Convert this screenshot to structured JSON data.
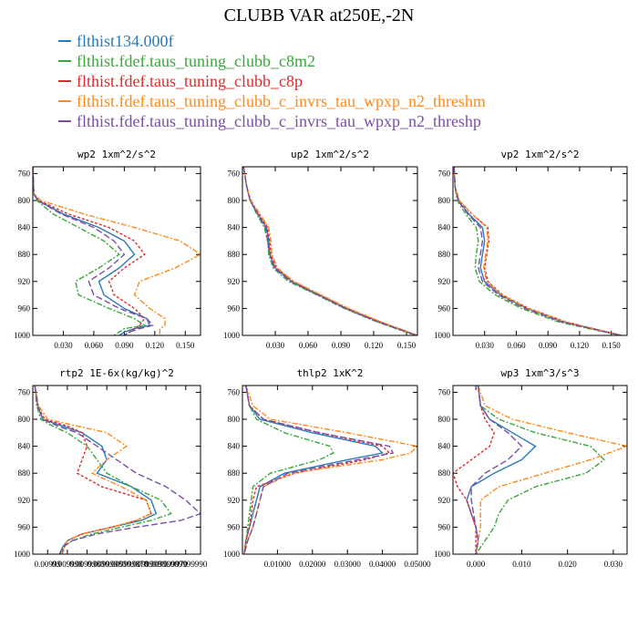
{
  "title": "CLUBB VAR at250E,-2N",
  "legend": [
    {
      "label": "flthist134.000f",
      "color": "#2a7ab9"
    },
    {
      "label": "flthist.fdef.taus_tuning_clubb_c8m2",
      "color": "#3aa73a"
    },
    {
      "label": "flthist.fdef.taus_tuning_clubb_c8p",
      "color": "#e02a2a"
    },
    {
      "label": "flthist.fdef.taus_tuning_clubb_c_invrs_tau_wpxp_n2_threshm",
      "color": "#ff8a1c"
    },
    {
      "label": "flthist.fdef.taus_tuning_clubb_c_invrs_tau_wpxp_n2_threshp",
      "color": "#7b4ea6"
    }
  ],
  "chart_data": [
    {
      "type": "line",
      "title": "wp2  1xm^2/s^2",
      "xlim": [
        0.0,
        0.165
      ],
      "ylim": [
        1000,
        750
      ],
      "xticks": [
        0.03,
        0.06,
        0.09,
        0.12,
        0.15
      ],
      "xticklabels": [
        "0.030",
        "0.060",
        "0.090",
        "0.120",
        "0.150"
      ],
      "yticks": [
        760,
        800,
        840,
        880,
        920,
        960,
        1000
      ],
      "y": [
        750,
        790,
        800,
        820,
        840,
        860,
        880,
        900,
        920,
        940,
        960,
        975,
        985,
        990,
        995,
        1000
      ],
      "series": [
        {
          "values": [
            0.0,
            0.001,
            0.005,
            0.03,
            0.065,
            0.09,
            0.1,
            0.085,
            0.065,
            0.07,
            0.09,
            0.112,
            0.115,
            0.1,
            0.09,
            0.085
          ]
        },
        {
          "values": [
            0.0,
            0.001,
            0.004,
            0.02,
            0.045,
            0.07,
            0.085,
            0.065,
            0.042,
            0.045,
            0.075,
            0.1,
            0.11,
            0.09,
            0.085,
            0.08
          ]
        },
        {
          "values": [
            0.0,
            0.001,
            0.006,
            0.035,
            0.075,
            0.1,
            0.11,
            0.09,
            0.075,
            0.08,
            0.1,
            0.11,
            0.105,
            0.1,
            0.095,
            0.09
          ]
        },
        {
          "values": [
            0.0,
            0.001,
            0.008,
            0.05,
            0.1,
            0.145,
            0.165,
            0.14,
            0.105,
            0.1,
            0.115,
            0.13,
            0.13,
            0.125,
            0.125,
            0.125
          ]
        },
        {
          "values": [
            0.0,
            0.001,
            0.005,
            0.028,
            0.06,
            0.08,
            0.09,
            0.075,
            0.055,
            0.06,
            0.085,
            0.112,
            0.118,
            0.105,
            0.095,
            0.09
          ]
        }
      ]
    },
    {
      "type": "line",
      "title": "up2  1xm^2/s^2",
      "xlim": [
        0.0,
        0.16
      ],
      "ylim": [
        1000,
        750
      ],
      "xticks": [
        0.03,
        0.06,
        0.09,
        0.12,
        0.15
      ],
      "xticklabels": [
        "0.030",
        "0.060",
        "0.090",
        "0.120",
        "0.150"
      ],
      "yticks": [
        760,
        800,
        840,
        880,
        920,
        960,
        1000
      ],
      "y": [
        750,
        780,
        800,
        820,
        840,
        860,
        880,
        900,
        920,
        940,
        960,
        980,
        1000
      ],
      "series": [
        {
          "values": [
            0.001,
            0.004,
            0.007,
            0.014,
            0.022,
            0.024,
            0.025,
            0.03,
            0.045,
            0.07,
            0.095,
            0.125,
            0.16
          ]
        },
        {
          "values": [
            0.001,
            0.004,
            0.007,
            0.013,
            0.02,
            0.023,
            0.024,
            0.028,
            0.042,
            0.068,
            0.093,
            0.123,
            0.158
          ]
        },
        {
          "values": [
            0.001,
            0.004,
            0.007,
            0.015,
            0.023,
            0.025,
            0.026,
            0.031,
            0.046,
            0.071,
            0.096,
            0.126,
            0.16
          ]
        },
        {
          "values": [
            0.001,
            0.004,
            0.008,
            0.016,
            0.024,
            0.026,
            0.027,
            0.032,
            0.047,
            0.072,
            0.097,
            0.127,
            0.16
          ]
        },
        {
          "values": [
            0.001,
            0.004,
            0.007,
            0.014,
            0.021,
            0.023,
            0.025,
            0.029,
            0.044,
            0.069,
            0.094,
            0.124,
            0.159
          ]
        }
      ]
    },
    {
      "type": "line",
      "title": "vp2  1xm^2/s^2",
      "xlim": [
        0.0,
        0.165
      ],
      "ylim": [
        1000,
        750
      ],
      "xticks": [
        0.03,
        0.06,
        0.09,
        0.12,
        0.15
      ],
      "xticklabels": [
        "0.030",
        "0.060",
        "0.090",
        "0.120",
        "0.150"
      ],
      "yticks": [
        760,
        800,
        840,
        880,
        920,
        960,
        1000
      ],
      "y": [
        750,
        780,
        800,
        820,
        840,
        860,
        880,
        900,
        920,
        940,
        960,
        980,
        1000
      ],
      "series": [
        {
          "values": [
            0.001,
            0.002,
            0.005,
            0.015,
            0.028,
            0.03,
            0.028,
            0.026,
            0.03,
            0.045,
            0.07,
            0.105,
            0.16
          ]
        },
        {
          "values": [
            0.001,
            0.002,
            0.004,
            0.012,
            0.022,
            0.024,
            0.022,
            0.021,
            0.025,
            0.04,
            0.065,
            0.1,
            0.158
          ]
        },
        {
          "values": [
            0.001,
            0.002,
            0.006,
            0.018,
            0.033,
            0.034,
            0.032,
            0.03,
            0.033,
            0.047,
            0.072,
            0.107,
            0.16
          ]
        },
        {
          "values": [
            0.001,
            0.002,
            0.006,
            0.018,
            0.032,
            0.033,
            0.031,
            0.029,
            0.032,
            0.046,
            0.071,
            0.106,
            0.16
          ]
        },
        {
          "values": [
            0.001,
            0.002,
            0.005,
            0.014,
            0.026,
            0.028,
            0.026,
            0.024,
            0.028,
            0.043,
            0.068,
            0.103,
            0.159
          ]
        }
      ]
    },
    {
      "type": "line",
      "title": "rtp2  1E-6x(kg/kg)^2",
      "xlim": [
        0.0,
        0.17
      ],
      "ylim": [
        1000,
        750
      ],
      "xticks": [
        0.015,
        0.035,
        0.055,
        0.075,
        0.095,
        0.115,
        0.135,
        0.155
      ],
      "xticklabels": [
        "0.00999",
        "0.009998",
        "0.0099980",
        "0.00999980",
        "0.009999870",
        "0.00999990",
        "0.009999970",
        "0.009999990"
      ],
      "yticks": [
        760,
        800,
        840,
        880,
        920,
        960,
        1000
      ],
      "y": [
        750,
        780,
        800,
        810,
        820,
        840,
        860,
        880,
        900,
        920,
        940,
        950,
        960,
        970,
        980,
        990,
        1000
      ],
      "series": [
        {
          "values": [
            0.002,
            0.005,
            0.01,
            0.03,
            0.05,
            0.07,
            0.075,
            0.065,
            0.1,
            0.12,
            0.125,
            0.11,
            0.08,
            0.05,
            0.035,
            0.03,
            0.03
          ]
        },
        {
          "values": [
            0.002,
            0.004,
            0.008,
            0.02,
            0.035,
            0.055,
            0.065,
            0.075,
            0.1,
            0.13,
            0.14,
            0.12,
            0.09,
            0.06,
            0.04,
            0.03,
            0.028
          ]
        },
        {
          "values": [
            0.002,
            0.005,
            0.012,
            0.035,
            0.05,
            0.055,
            0.05,
            0.045,
            0.07,
            0.115,
            0.12,
            0.105,
            0.08,
            0.05,
            0.035,
            0.032,
            0.03
          ]
        },
        {
          "values": [
            0.002,
            0.006,
            0.015,
            0.045,
            0.075,
            0.095,
            0.075,
            0.06,
            0.09,
            0.115,
            0.12,
            0.105,
            0.08,
            0.05,
            0.035,
            0.032,
            0.03
          ]
        },
        {
          "values": [
            0.002,
            0.005,
            0.01,
            0.025,
            0.045,
            0.065,
            0.085,
            0.105,
            0.135,
            0.155,
            0.17,
            0.15,
            0.105,
            0.065,
            0.04,
            0.03,
            0.027
          ]
        }
      ]
    },
    {
      "type": "line",
      "title": "thlp2  1xK^2",
      "xlim": [
        0.0,
        0.05
      ],
      "ylim": [
        1000,
        750
      ],
      "xticks": [
        0.01,
        0.02,
        0.03,
        0.04,
        0.05
      ],
      "xticklabels": [
        "0.01000",
        "0.02000",
        "0.03000",
        "0.04000",
        "0.05000"
      ],
      "yticks": [
        760,
        800,
        840,
        880,
        920,
        960,
        1000
      ],
      "y": [
        750,
        780,
        800,
        820,
        840,
        850,
        860,
        880,
        900,
        920,
        940,
        960,
        980,
        1000
      ],
      "series": [
        {
          "values": [
            0.001,
            0.002,
            0.005,
            0.02,
            0.038,
            0.04,
            0.03,
            0.012,
            0.005,
            0.004,
            0.003,
            0.002,
            0.001,
            0.0005
          ]
        },
        {
          "values": [
            0.001,
            0.002,
            0.004,
            0.012,
            0.025,
            0.026,
            0.022,
            0.008,
            0.003,
            0.0025,
            0.002,
            0.0015,
            0.001,
            0.0005
          ]
        },
        {
          "values": [
            0.001,
            0.002,
            0.006,
            0.022,
            0.04,
            0.042,
            0.035,
            0.015,
            0.004,
            0.003,
            0.0025,
            0.002,
            0.001,
            0.0005
          ]
        },
        {
          "values": [
            0.001,
            0.003,
            0.008,
            0.03,
            0.05,
            0.048,
            0.04,
            0.014,
            0.006,
            0.005,
            0.004,
            0.003,
            0.0015,
            0.0005
          ]
        },
        {
          "values": [
            0.001,
            0.002,
            0.006,
            0.022,
            0.042,
            0.043,
            0.033,
            0.013,
            0.006,
            0.005,
            0.004,
            0.003,
            0.0015,
            0.0005
          ]
        }
      ]
    },
    {
      "type": "line",
      "title": "wp3  1xm^3/s^3",
      "xlim": [
        -0.005,
        0.033
      ],
      "ylim": [
        1000,
        750
      ],
      "xticks": [
        0.0,
        0.01,
        0.02,
        0.03
      ],
      "xticklabels": [
        "0.000",
        "0.010",
        "0.020",
        "0.030"
      ],
      "yticks": [
        760,
        800,
        840,
        880,
        920,
        960,
        1000
      ],
      "y": [
        750,
        780,
        800,
        820,
        840,
        860,
        880,
        900,
        920,
        940,
        960,
        980,
        1000
      ],
      "series": [
        {
          "values": [
            0.0005,
            0.001,
            0.003,
            0.008,
            0.013,
            0.01,
            0.004,
            -0.001,
            -0.002,
            -0.001,
            0.0,
            0.0005,
            0.0
          ]
        },
        {
          "values": [
            0.0005,
            0.001,
            0.005,
            0.013,
            0.025,
            0.028,
            0.024,
            0.013,
            0.007,
            0.005,
            0.004,
            0.002,
            0.0
          ]
        },
        {
          "values": [
            0.0005,
            0.001,
            0.002,
            0.004,
            0.003,
            -0.001,
            -0.005,
            -0.004,
            -0.002,
            -0.001,
            0.0,
            0.0,
            0.0
          ]
        },
        {
          "values": [
            0.0005,
            0.002,
            0.008,
            0.02,
            0.033,
            0.025,
            0.015,
            0.005,
            0.001,
            0.001,
            0.001,
            0.0005,
            0.0
          ]
        },
        {
          "values": [
            0.0005,
            0.001,
            0.003,
            0.007,
            0.01,
            0.007,
            0.002,
            -0.001,
            -0.001,
            -0.0005,
            0.0,
            0.0005,
            0.0
          ]
        }
      ]
    }
  ]
}
